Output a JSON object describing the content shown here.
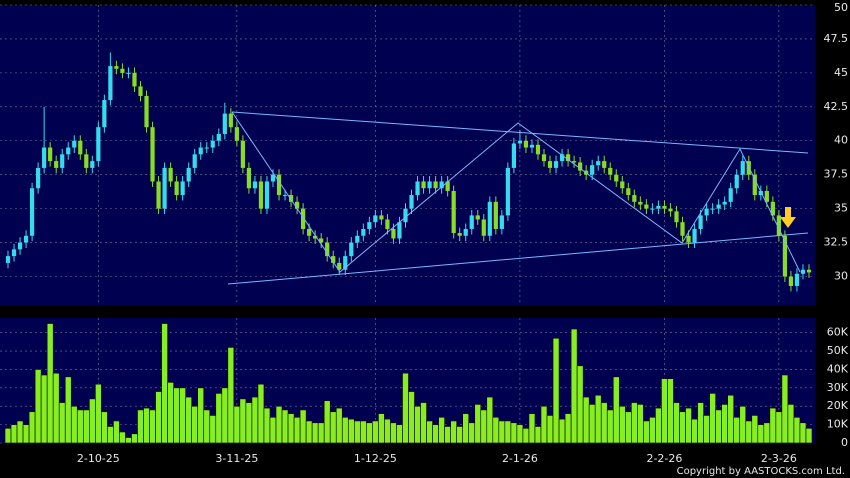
{
  "chart_data": {
    "type": "candlestick",
    "categories": [
      null,
      null,
      null,
      null,
      null,
      null,
      null,
      null,
      null,
      null,
      null,
      null,
      null,
      null,
      null,
      "2-10-25",
      null,
      null,
      null,
      null,
      null,
      null,
      null,
      null,
      null,
      null,
      null,
      null,
      null,
      null,
      null,
      null,
      null,
      null,
      null,
      null,
      null,
      null,
      "3-11-25",
      null,
      null,
      null,
      null,
      null,
      null,
      null,
      null,
      null,
      null,
      null,
      null,
      null,
      null,
      null,
      null,
      null,
      null,
      null,
      null,
      null,
      null,
      "1-12-25",
      null,
      null,
      null,
      null,
      null,
      null,
      null,
      null,
      null,
      null,
      null,
      null,
      null,
      null,
      null,
      null,
      null,
      null,
      null,
      null,
      null,
      null,
      null,
      "2-1-26",
      null,
      null,
      null,
      null,
      null,
      null,
      null,
      null,
      null,
      null,
      null,
      null,
      null,
      null,
      null,
      null,
      null,
      null,
      null,
      null,
      null,
      null,
      null,
      "2-2-26",
      null,
      null,
      null,
      null,
      null,
      null,
      null,
      null,
      null,
      null,
      null,
      null,
      null,
      null,
      null,
      null,
      null,
      null,
      "2-3-26",
      null,
      null,
      null,
      null,
      null
    ],
    "open": [
      31,
      31.5,
      32,
      32.5,
      33,
      36.5,
      38,
      39.5,
      38.5,
      38,
      39,
      39.5,
      40,
      39,
      38,
      38.5,
      41,
      43,
      45.5,
      45.3,
      45,
      45,
      44,
      43.3,
      41,
      37,
      35,
      38,
      37,
      36,
      37,
      38,
      39,
      39.5,
      39.5,
      40,
      40.5,
      42,
      41,
      40,
      38,
      36.5,
      37,
      35,
      37,
      37.5,
      36,
      36,
      35.5,
      35,
      33.5,
      33,
      32.8,
      32.5,
      31.5,
      31,
      30.5,
      31.5,
      32.5,
      33,
      33.5,
      34,
      34.5,
      34.2,
      33.5,
      32.8,
      34,
      35,
      36,
      37,
      36.5,
      37,
      36.5,
      37,
      36.3,
      33.2,
      33,
      33.5,
      34.5,
      34.2,
      33,
      35.5,
      33.5,
      34.5,
      38,
      39.8,
      40,
      39.5,
      39.7,
      39,
      38.5,
      38,
      38.5,
      39,
      38.5,
      38.4,
      37.8,
      37.5,
      38.2,
      38.5,
      38,
      37.5,
      37,
      36.5,
      36,
      35.5,
      35.3,
      35,
      35,
      35.2,
      35,
      34.8,
      34,
      33,
      32.5,
      33.5,
      34.5,
      35,
      35,
      35.3,
      35.5,
      36.5,
      37.5,
      38.5,
      37.5,
      36,
      36.3,
      35.5,
      34.5,
      33,
      30,
      29.3,
      30.2,
      30.5
    ],
    "high": [
      31.9,
      32.4,
      32.9,
      33.4,
      36.9,
      38.4,
      42.5,
      39.9,
      38.9,
      39.4,
      39.9,
      40.4,
      40.4,
      39.4,
      38.9,
      41.4,
      43.4,
      46.5,
      45.9,
      45.7,
      45.4,
      45.4,
      44.4,
      43.7,
      41.4,
      37.4,
      38.4,
      38.4,
      37.4,
      37.4,
      38.4,
      39.4,
      39.9,
      39.9,
      40.4,
      40.9,
      42.8,
      42.4,
      41.4,
      40.4,
      38.4,
      37.4,
      37.4,
      37.4,
      37.9,
      37.9,
      36.4,
      36.4,
      35.9,
      35.4,
      33.9,
      33.4,
      33.2,
      32.9,
      31.9,
      31.4,
      31.9,
      32.9,
      33.4,
      33.9,
      34.4,
      34.9,
      34.9,
      34.6,
      33.9,
      34.4,
      35.4,
      36.4,
      37.4,
      37.4,
      37.4,
      37.4,
      37.4,
      37.4,
      36.7,
      33.6,
      33.9,
      34.9,
      34.9,
      34.6,
      35.9,
      35.9,
      34.9,
      38.4,
      40.2,
      40.8,
      40.4,
      40.1,
      40.1,
      39.4,
      38.9,
      38.9,
      39.4,
      39.4,
      38.9,
      38.8,
      38.2,
      38.6,
      38.9,
      38.9,
      38.4,
      37.9,
      37.4,
      36.9,
      36.4,
      35.9,
      35.7,
      35.4,
      35.6,
      35.6,
      35.4,
      35.2,
      34.4,
      33.4,
      33.9,
      34.9,
      35.4,
      35.4,
      35.7,
      35.9,
      36.9,
      37.9,
      38.9,
      38.9,
      37.9,
      36.7,
      36.7,
      35.9,
      34.9,
      33.4,
      30.4,
      30.6,
      30.9,
      30.9
    ],
    "low": [
      30.6,
      31.1,
      31.6,
      32.1,
      32.6,
      36.1,
      37.6,
      38.1,
      37.6,
      37.6,
      38.6,
      39.1,
      38.6,
      37.6,
      37.6,
      38.1,
      40.6,
      42.6,
      44.9,
      44.6,
      44.6,
      43.6,
      42.9,
      40.6,
      36.6,
      34.6,
      34.6,
      36.6,
      35.6,
      35.6,
      36.6,
      37.6,
      38.6,
      39.1,
      39.1,
      39.6,
      40.1,
      40.6,
      39.6,
      37.6,
      36.1,
      36.1,
      34.6,
      34.6,
      36.6,
      35.6,
      35.6,
      35.1,
      34.6,
      33.1,
      32.6,
      32.4,
      32.1,
      31.1,
      30.6,
      30.1,
      30.1,
      31.1,
      32.1,
      32.6,
      33.1,
      33.6,
      33.8,
      33.1,
      32.4,
      32.4,
      33.6,
      34.6,
      35.6,
      36.1,
      36.1,
      36.1,
      36.1,
      35.9,
      32.8,
      32.6,
      32.6,
      33.1,
      33.8,
      32.6,
      32.6,
      33.1,
      33.1,
      34.1,
      37.6,
      39.4,
      39.1,
      39.1,
      38.6,
      38.1,
      37.6,
      37.6,
      38.1,
      38.1,
      38,
      37.4,
      37.1,
      37.1,
      37.8,
      37.6,
      37.1,
      36.6,
      36.1,
      35.6,
      35.1,
      34.9,
      34.6,
      34.6,
      34.6,
      34.6,
      34.4,
      33.6,
      32.6,
      32.1,
      32.1,
      33.1,
      34.1,
      34.6,
      34.6,
      34.9,
      35.1,
      36.1,
      37.1,
      37.1,
      35.6,
      35.6,
      35.1,
      34.1,
      32.6,
      29.6,
      28.9,
      28.9,
      29.8,
      29.9
    ],
    "close": [
      31.5,
      32,
      32.5,
      33,
      36.5,
      38,
      39.5,
      38.5,
      38,
      39,
      39.5,
      40,
      39,
      38,
      38.5,
      41,
      43,
      45.5,
      45.3,
      45,
      45,
      44,
      43.3,
      41,
      37,
      35,
      38,
      37,
      36,
      37,
      38,
      39,
      39.5,
      39.5,
      40,
      40.5,
      42,
      41,
      40,
      38,
      36.5,
      37,
      35,
      37,
      37.5,
      36,
      36,
      35.5,
      35,
      33.5,
      33,
      32.8,
      32.5,
      31.5,
      31,
      30.5,
      31.5,
      32.5,
      33,
      33.5,
      34,
      34.5,
      34.2,
      33.5,
      32.8,
      34,
      35,
      36,
      37,
      36.5,
      37,
      36.5,
      37,
      36.3,
      33.2,
      33,
      33.5,
      34.5,
      34.2,
      33,
      35.5,
      33.5,
      34.5,
      38,
      39.8,
      40,
      39.5,
      39.7,
      39,
      38.5,
      38,
      38.5,
      39,
      38.5,
      38.4,
      37.8,
      37.5,
      38.2,
      38.5,
      38,
      37.5,
      37,
      36.5,
      36,
      35.5,
      35.3,
      35,
      35,
      35.2,
      35,
      34.8,
      34,
      33,
      32.5,
      33.5,
      34.5,
      35,
      35,
      35.3,
      35.5,
      36.5,
      37.5,
      38.5,
      37.5,
      36,
      36.3,
      35.5,
      34.5,
      33,
      30,
      29.3,
      30.2,
      30.5,
      30.3
    ],
    "up_color": "#33ddee",
    "down_color": "#88dd22",
    "ylim": [
      27.9,
      50
    ],
    "yticks": [
      30,
      32.5,
      35,
      37.5,
      40,
      42.5,
      45,
      47.5,
      50
    ],
    "grid": true,
    "volume": {
      "values": [
        8,
        10,
        12,
        10,
        17,
        40,
        37,
        65,
        38,
        22,
        36,
        20,
        18,
        18,
        24,
        32,
        17,
        9,
        12,
        6,
        3,
        5,
        18,
        19,
        18,
        28,
        65,
        33,
        30,
        30,
        25,
        20,
        30,
        18,
        15,
        27,
        30,
        52,
        20,
        24,
        22,
        25,
        32,
        19,
        14,
        20,
        18,
        16,
        14,
        18,
        12,
        11,
        11,
        23,
        17,
        19,
        14,
        13,
        12,
        12,
        11,
        12,
        16,
        13,
        11,
        10,
        38,
        28,
        20,
        22,
        12,
        10,
        14,
        9,
        12,
        9,
        16,
        11,
        21,
        18,
        25,
        14,
        12,
        12,
        11,
        10,
        8,
        16,
        9,
        20,
        15,
        57,
        13,
        16,
        62,
        42,
        25,
        21,
        26,
        22,
        18,
        36,
        20,
        17,
        22,
        21,
        12,
        14,
        19,
        35,
        35,
        22,
        17,
        19,
        13,
        22,
        15,
        27,
        18,
        21,
        26,
        14,
        20,
        12,
        15,
        10,
        11,
        19,
        17,
        37,
        21,
        14,
        11,
        8
      ],
      "color": "#88ee22",
      "ylim": [
        0,
        68
      ],
      "yticks": [
        0,
        {
          "value": 10,
          "label": "10K"
        },
        {
          "value": 20,
          "label": "20K"
        },
        {
          "value": 30,
          "label": "30K"
        },
        {
          "value": 40,
          "label": "40K"
        },
        {
          "value": 50,
          "label": "50K"
        },
        {
          "value": 60,
          "label": "60K"
        }
      ]
    }
  },
  "footer": "Copyright by AASTOCKS.com Ltd."
}
